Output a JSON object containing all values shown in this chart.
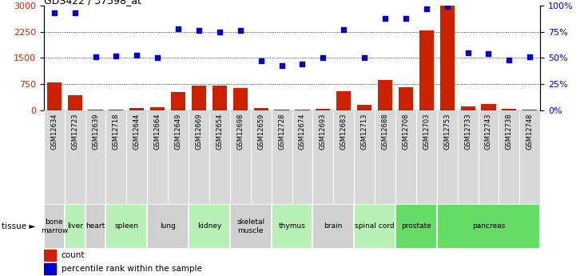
{
  "title": "GDS422 / 37598_at",
  "samples": [
    "GSM12634",
    "GSM12723",
    "GSM12639",
    "GSM12718",
    "GSM12644",
    "GSM12664",
    "GSM12649",
    "GSM12669",
    "GSM12654",
    "GSM12698",
    "GSM12659",
    "GSM12728",
    "GSM12674",
    "GSM12693",
    "GSM12683",
    "GSM12713",
    "GSM12688",
    "GSM12708",
    "GSM12703",
    "GSM12753",
    "GSM12733",
    "GSM12743",
    "GSM12738",
    "GSM12748"
  ],
  "counts": [
    800,
    430,
    20,
    30,
    80,
    90,
    530,
    700,
    700,
    650,
    80,
    30,
    30,
    50,
    540,
    160,
    870,
    660,
    2280,
    3000,
    120,
    180,
    50,
    30
  ],
  "percentiles": [
    93,
    93,
    51,
    52,
    53,
    50,
    78,
    76,
    75,
    76,
    47,
    43,
    44,
    50,
    77,
    50,
    88,
    88,
    97,
    99,
    55,
    54,
    48,
    51
  ],
  "tissues": [
    {
      "label": "bone\nmarrow",
      "start": 0,
      "end": 1,
      "color": "#d0d0d0"
    },
    {
      "label": "liver",
      "start": 1,
      "end": 2,
      "color": "#b8f0b8"
    },
    {
      "label": "heart",
      "start": 2,
      "end": 3,
      "color": "#d0d0d0"
    },
    {
      "label": "spleen",
      "start": 3,
      "end": 5,
      "color": "#b8f0b8"
    },
    {
      "label": "lung",
      "start": 5,
      "end": 7,
      "color": "#d0d0d0"
    },
    {
      "label": "kidney",
      "start": 7,
      "end": 9,
      "color": "#b8f0b8"
    },
    {
      "label": "skeletal\nmuscle",
      "start": 9,
      "end": 11,
      "color": "#d0d0d0"
    },
    {
      "label": "thymus",
      "start": 11,
      "end": 13,
      "color": "#b8f0b8"
    },
    {
      "label": "brain",
      "start": 13,
      "end": 15,
      "color": "#d0d0d0"
    },
    {
      "label": "spinal cord",
      "start": 15,
      "end": 17,
      "color": "#b8f0b8"
    },
    {
      "label": "prostate",
      "start": 17,
      "end": 19,
      "color": "#66dd66"
    },
    {
      "label": "pancreas",
      "start": 19,
      "end": 24,
      "color": "#66dd66"
    }
  ],
  "ylim_left": [
    0,
    3000
  ],
  "ylim_right": [
    0,
    100
  ],
  "yticks_left": [
    0,
    750,
    1500,
    2250,
    3000
  ],
  "yticks_right": [
    0,
    25,
    50,
    75,
    100
  ],
  "bar_color": "#cc2200",
  "dot_color": "#0000cc",
  "background_color": "#ffffff",
  "grid_color": "#000000"
}
